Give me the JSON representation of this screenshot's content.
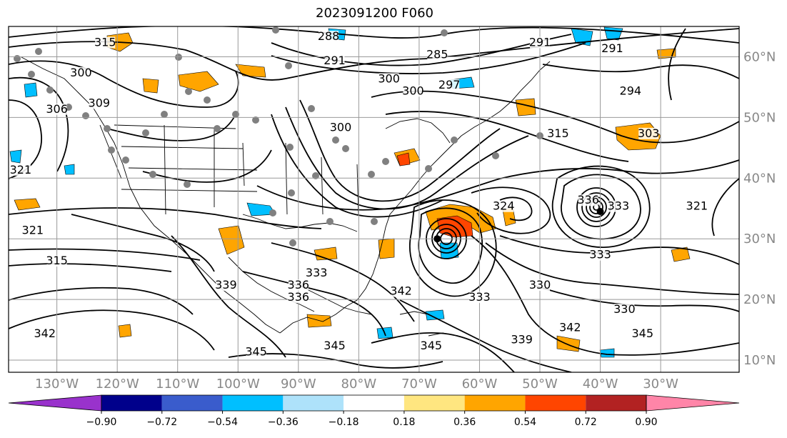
{
  "title": "2023091200 F060",
  "map": {
    "lon_range": [
      -138,
      -17
    ],
    "lat_range": [
      8,
      65
    ],
    "lon_labels": [
      "130°W",
      "120°W",
      "110°W",
      "100°W",
      "90°W",
      "80°W",
      "70°W",
      "60°W",
      "50°W",
      "40°W",
      "30°W"
    ],
    "lon_values": [
      -130,
      -120,
      -110,
      -100,
      -90,
      -80,
      -70,
      -60,
      -50,
      -40,
      -30
    ],
    "lat_labels": [
      "10°N",
      "20°N",
      "30°N",
      "40°N",
      "50°N",
      "60°N"
    ],
    "lat_values": [
      10,
      20,
      30,
      40,
      50,
      60
    ],
    "gridlines": true,
    "contour_labels": [
      {
        "text": "315",
        "lon": -122,
        "lat": 62
      },
      {
        "text": "300",
        "lon": -126,
        "lat": 57
      },
      {
        "text": "309",
        "lon": -123,
        "lat": 52
      },
      {
        "text": "306",
        "lon": -130,
        "lat": 51
      },
      {
        "text": "321",
        "lon": -136,
        "lat": 41
      },
      {
        "text": "321",
        "lon": -134,
        "lat": 31
      },
      {
        "text": "315",
        "lon": -130,
        "lat": 26
      },
      {
        "text": "288",
        "lon": -85,
        "lat": 63
      },
      {
        "text": "291",
        "lon": -84,
        "lat": 59
      },
      {
        "text": "285",
        "lon": -67,
        "lat": 60
      },
      {
        "text": "300",
        "lon": -75,
        "lat": 56
      },
      {
        "text": "300",
        "lon": -71,
        "lat": 54
      },
      {
        "text": "297",
        "lon": -65,
        "lat": 55
      },
      {
        "text": "300",
        "lon": -83,
        "lat": 48
      },
      {
        "text": "291",
        "lon": -50,
        "lat": 62
      },
      {
        "text": "291",
        "lon": -38,
        "lat": 61
      },
      {
        "text": "294",
        "lon": -35,
        "lat": 54
      },
      {
        "text": "315",
        "lon": -47,
        "lat": 47
      },
      {
        "text": "303",
        "lon": -32,
        "lat": 47
      },
      {
        "text": "324",
        "lon": -56,
        "lat": 35
      },
      {
        "text": "336",
        "lon": -42,
        "lat": 36
      },
      {
        "text": "333",
        "lon": -37,
        "lat": 35
      },
      {
        "text": "321",
        "lon": -24,
        "lat": 35
      },
      {
        "text": "333",
        "lon": -40,
        "lat": 27
      },
      {
        "text": "330",
        "lon": -50,
        "lat": 22
      },
      {
        "text": "330",
        "lon": -36,
        "lat": 18
      },
      {
        "text": "339",
        "lon": -102,
        "lat": 22
      },
      {
        "text": "336",
        "lon": -90,
        "lat": 22
      },
      {
        "text": "336",
        "lon": -90,
        "lat": 20
      },
      {
        "text": "333",
        "lon": -87,
        "lat": 24
      },
      {
        "text": "342",
        "lon": -73,
        "lat": 21
      },
      {
        "text": "333",
        "lon": -60,
        "lat": 20
      },
      {
        "text": "342",
        "lon": -45,
        "lat": 15
      },
      {
        "text": "345",
        "lon": -33,
        "lat": 14
      },
      {
        "text": "339",
        "lon": -53,
        "lat": 13
      },
      {
        "text": "345",
        "lon": -97,
        "lat": 11
      },
      {
        "text": "345",
        "lon": -84,
        "lat": 12
      },
      {
        "text": "345",
        "lon": -68,
        "lat": 12
      },
      {
        "text": "342",
        "lon": -132,
        "lat": 14
      }
    ],
    "cyclones": [
      {
        "lon": -67,
        "lat": 30
      },
      {
        "lon": -40,
        "lat": 34.5
      }
    ]
  },
  "colorbar": {
    "ticks": [
      "−0.90",
      "−0.72",
      "−0.54",
      "−0.36",
      "−0.18",
      "0.18",
      "0.36",
      "0.54",
      "0.72",
      "0.90"
    ],
    "colors": [
      "#9932cc",
      "#00008b",
      "#3a5ccc",
      "#00bfff",
      "#aee2fa",
      "#ffffff",
      "#ffe680",
      "#ffa500",
      "#ff4500",
      "#b22222",
      "#ff85a8"
    ],
    "extend": "both"
  },
  "palette": {
    "land_line": "#000000",
    "grid": "#999999",
    "orange": "#ffa500",
    "light_blue": "#00bfff",
    "red_orange": "#ff4500",
    "dot": "#808080"
  }
}
